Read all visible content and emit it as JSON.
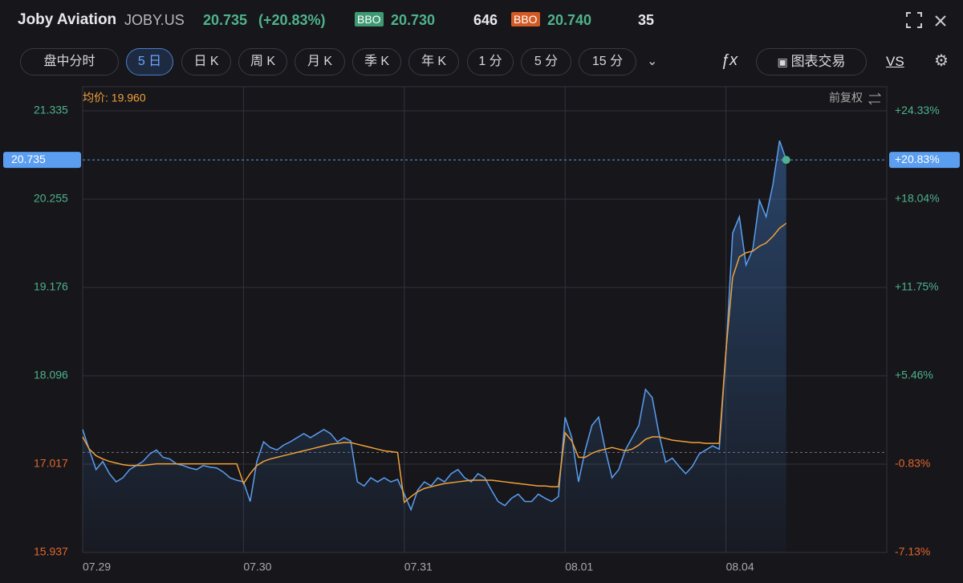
{
  "header": {
    "name": "Joby Aviation",
    "ticker": "JOBY.US",
    "change": "(+20.83%)",
    "bbo_bid_label": "BBO",
    "bid": "20.730",
    "bid_size": "646",
    "bbo_ask_label": "BBO",
    "ask": "20.740",
    "ask_size": "35"
  },
  "toolbar": {
    "items": [
      "盘中分时",
      "5 日",
      "日 K",
      "周 K",
      "月 K",
      "季 K",
      "年 K",
      "1 分",
      "5 分",
      "15 分"
    ],
    "active": 1,
    "chart_trade": "图表交易",
    "vs": "VS"
  },
  "chart_data": {
    "type": "line",
    "avg_label": "均价: 19.960",
    "adjust_label": "前复权",
    "current_price": 20.735,
    "current_change": "+20.83%",
    "categories": [
      "07.29",
      null,
      null,
      null,
      null,
      null,
      null,
      null,
      null,
      null,
      null,
      null,
      null,
      null,
      null,
      null,
      null,
      null,
      null,
      null,
      null,
      null,
      null,
      null,
      "07.30",
      null,
      null,
      null,
      null,
      null,
      null,
      null,
      null,
      null,
      null,
      null,
      null,
      null,
      null,
      null,
      null,
      null,
      null,
      null,
      null,
      null,
      null,
      null,
      "07.31",
      null,
      null,
      null,
      null,
      null,
      null,
      null,
      null,
      null,
      null,
      null,
      null,
      null,
      null,
      null,
      null,
      null,
      null,
      null,
      null,
      null,
      null,
      null,
      "08.01",
      null,
      null,
      null,
      null,
      null,
      null,
      null,
      null,
      null,
      null,
      null,
      null,
      null,
      null,
      null,
      null,
      null,
      null,
      null,
      null,
      null,
      null,
      null,
      "08.04",
      null,
      null,
      null,
      null,
      null,
      null,
      null,
      null,
      null,
      null,
      null,
      null,
      null,
      null,
      null,
      null,
      null,
      null,
      null,
      null,
      null,
      null,
      null
    ],
    "series": [
      {
        "name": "price",
        "color": "#5b9ef0",
        "values": [
          17.44,
          17.19,
          16.95,
          17.05,
          16.9,
          16.8,
          16.85,
          16.95,
          17.0,
          17.05,
          17.14,
          17.19,
          17.1,
          17.08,
          17.02,
          17.0,
          16.97,
          16.95,
          17.0,
          16.98,
          16.97,
          16.92,
          16.85,
          16.82,
          16.8,
          16.56,
          17.05,
          17.29,
          17.22,
          17.19,
          17.25,
          17.29,
          17.34,
          17.39,
          17.34,
          17.39,
          17.44,
          17.39,
          17.29,
          17.34,
          17.3,
          16.8,
          16.75,
          16.85,
          16.8,
          16.85,
          16.8,
          16.83,
          16.65,
          16.46,
          16.7,
          16.8,
          16.75,
          16.85,
          16.8,
          16.9,
          16.95,
          16.85,
          16.8,
          16.9,
          16.85,
          16.7,
          16.56,
          16.51,
          16.6,
          16.65,
          16.56,
          16.56,
          16.65,
          16.6,
          16.56,
          16.62,
          17.59,
          17.34,
          16.8,
          17.19,
          17.49,
          17.59,
          17.19,
          16.85,
          16.95,
          17.19,
          17.34,
          17.49,
          17.93,
          17.83,
          17.39,
          17.04,
          17.09,
          16.99,
          16.9,
          16.99,
          17.14,
          17.19,
          17.24,
          17.2,
          18.37,
          19.84,
          20.04,
          19.45,
          19.64,
          20.24,
          20.04,
          20.43,
          20.97,
          20.735,
          null,
          null,
          null,
          null,
          null,
          null,
          null,
          null,
          null,
          null,
          null,
          null,
          null,
          null
        ]
      },
      {
        "name": "average",
        "color": "#f0a13a",
        "values": [
          17.35,
          17.2,
          17.12,
          17.08,
          17.05,
          17.03,
          17.01,
          17.0,
          17.0,
          17.0,
          17.01,
          17.02,
          17.02,
          17.02,
          17.02,
          17.02,
          17.02,
          17.02,
          17.02,
          17.02,
          17.02,
          17.02,
          17.02,
          17.02,
          16.78,
          16.9,
          17.0,
          17.05,
          17.08,
          17.1,
          17.12,
          17.14,
          17.16,
          17.18,
          17.2,
          17.22,
          17.24,
          17.26,
          17.27,
          17.28,
          17.28,
          17.26,
          17.24,
          17.22,
          17.2,
          17.18,
          17.17,
          17.16,
          16.55,
          16.62,
          16.68,
          16.72,
          16.74,
          16.76,
          16.78,
          16.79,
          16.8,
          16.81,
          16.82,
          16.82,
          16.82,
          16.82,
          16.81,
          16.8,
          16.79,
          16.78,
          16.77,
          16.76,
          16.75,
          16.75,
          16.74,
          16.74,
          17.4,
          17.3,
          17.1,
          17.1,
          17.15,
          17.18,
          17.2,
          17.22,
          17.2,
          17.18,
          17.2,
          17.25,
          17.32,
          17.35,
          17.35,
          17.33,
          17.31,
          17.3,
          17.29,
          17.28,
          17.28,
          17.27,
          17.27,
          17.27,
          18.4,
          19.3,
          19.55,
          19.6,
          19.62,
          19.68,
          19.72,
          19.8,
          19.9,
          19.96,
          null,
          null,
          null,
          null,
          null,
          null,
          null,
          null,
          null,
          null,
          null,
          null,
          null,
          null
        ]
      }
    ],
    "ylim": [
      15.937,
      21.629
    ],
    "yticks": [
      21.335,
      20.255,
      19.176,
      18.096,
      17.017,
      15.937
    ],
    "y2lim": [
      -7.13,
      26.05
    ],
    "y2ticks": [
      {
        "value": 24.33,
        "label": "+24.33%"
      },
      {
        "value": 18.04,
        "label": "+18.04%"
      },
      {
        "value": 11.75,
        "label": "+11.75%"
      },
      {
        "value": 5.46,
        "label": "+5.46%"
      },
      {
        "value": -0.83,
        "label": "-0.83%"
      },
      {
        "value": -7.13,
        "label": "-7.13%"
      }
    ],
    "grid": true,
    "up_color": "#4fb38a",
    "down_color": "#e3662c"
  }
}
